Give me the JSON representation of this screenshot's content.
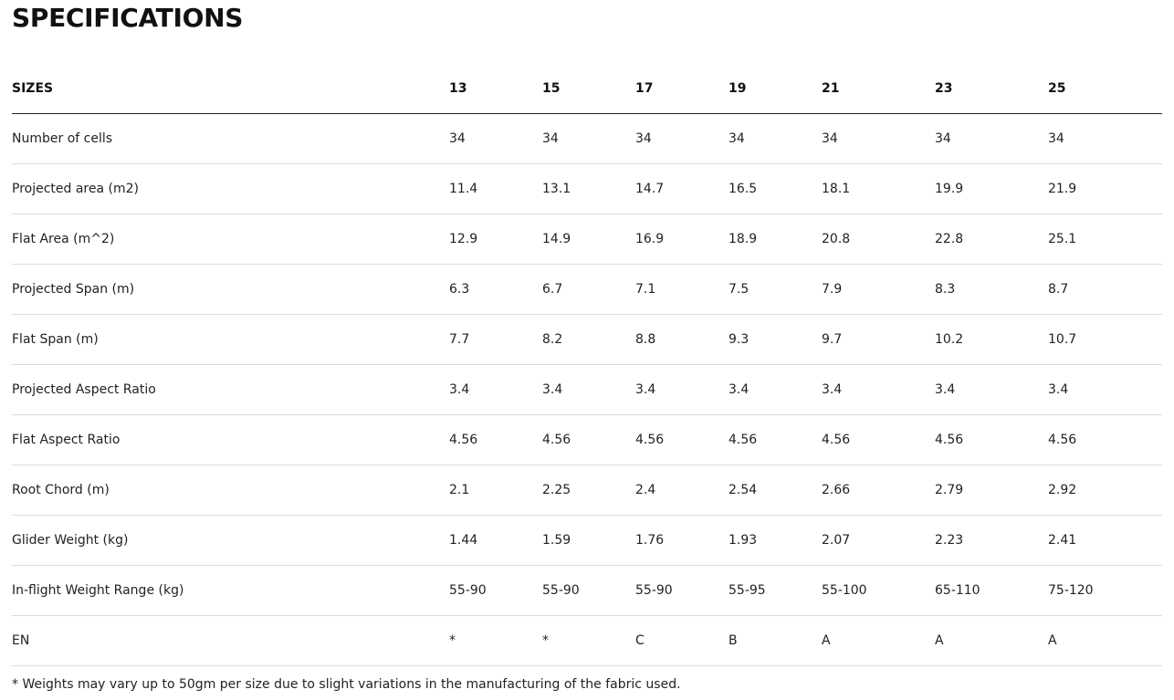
{
  "title": "SPECIFICATIONS",
  "table": {
    "header": {
      "label": "SIZES",
      "sizes": [
        "13",
        "15",
        "17",
        "19",
        "21",
        "23",
        "25"
      ]
    },
    "rows": [
      {
        "label": "Number of cells",
        "values": [
          "34",
          "34",
          "34",
          "34",
          "34",
          "34",
          "34"
        ]
      },
      {
        "label": "Projected area (m2)",
        "values": [
          "11.4",
          "13.1",
          "14.7",
          "16.5",
          "18.1",
          "19.9",
          "21.9"
        ]
      },
      {
        "label": "Flat Area (m^2)",
        "values": [
          "12.9",
          "14.9",
          "16.9",
          "18.9",
          "20.8",
          "22.8",
          "25.1"
        ]
      },
      {
        "label": "Projected Span (m)",
        "values": [
          "6.3",
          "6.7",
          "7.1",
          "7.5",
          "7.9",
          "8.3",
          "8.7"
        ]
      },
      {
        "label": "Flat Span (m)",
        "values": [
          "7.7",
          "8.2",
          "8.8",
          "9.3",
          "9.7",
          "10.2",
          "10.7"
        ]
      },
      {
        "label": "Projected Aspect Ratio",
        "values": [
          "3.4",
          "3.4",
          "3.4",
          "3.4",
          "3.4",
          "3.4",
          "3.4"
        ]
      },
      {
        "label": "Flat Aspect Ratio",
        "values": [
          "4.56",
          "4.56",
          "4.56",
          "4.56",
          "4.56",
          "4.56",
          "4.56"
        ]
      },
      {
        "label": "Root Chord (m)",
        "values": [
          "2.1",
          "2.25",
          "2.4",
          "2.54",
          "2.66",
          "2.79",
          "2.92"
        ]
      },
      {
        "label": "Glider Weight (kg)",
        "values": [
          "1.44",
          "1.59",
          "1.76",
          "1.93",
          "2.07",
          "2.23",
          "2.41"
        ]
      },
      {
        "label": "In-flight Weight Range (kg)",
        "values": [
          "55-90",
          "55-90",
          "55-90",
          "55-95",
          "55-100",
          "65-110",
          "75-120"
        ]
      },
      {
        "label": "EN",
        "values": [
          "*",
          "*",
          "C",
          "B",
          "A",
          "A",
          "A"
        ]
      }
    ]
  },
  "footnote": "* Weights may vary up to 50gm per size due to slight variations in the manufacturing of the fabric used."
}
